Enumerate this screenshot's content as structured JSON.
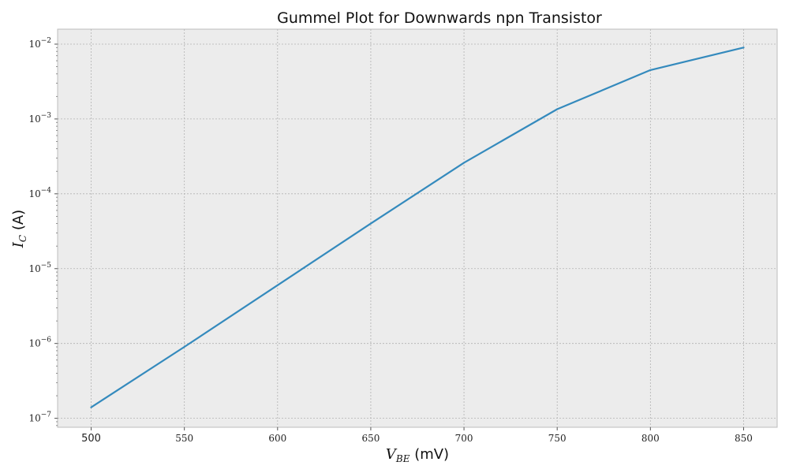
{
  "chart_data": {
    "type": "line",
    "title": "Gummel Plot for Downwards npn Transistor",
    "xlabel": {
      "var": "V",
      "sub": "BE",
      "unit": " (mV)"
    },
    "ylabel": {
      "var": "I",
      "sub": "C",
      "unit": " (A)"
    },
    "xlim": [
      482,
      868
    ],
    "ylim_log10": [
      -7.12,
      -1.8
    ],
    "yscale": "log",
    "grid": true,
    "x_ticks": [
      "500",
      "550",
      "600",
      "650",
      "700",
      "750",
      "800",
      "850"
    ],
    "x_tick_values": [
      500,
      550,
      600,
      650,
      700,
      750,
      800,
      850
    ],
    "y_tick_exponents": [
      "-7",
      "-6",
      "-5",
      "-4",
      "-3",
      "-2"
    ],
    "y_tick_base": "10",
    "series": [
      {
        "color": "#348abd",
        "x": [
          500,
          550,
          600,
          650,
          700,
          750,
          800,
          850
        ],
        "y": [
          1.4e-07,
          9e-07,
          6e-06,
          4e-05,
          0.00026,
          0.00135,
          0.0045,
          0.009
        ]
      }
    ],
    "colors": {
      "plot_background": "#ececec",
      "grid": "#b2b2b2",
      "line": "#348abd"
    }
  }
}
